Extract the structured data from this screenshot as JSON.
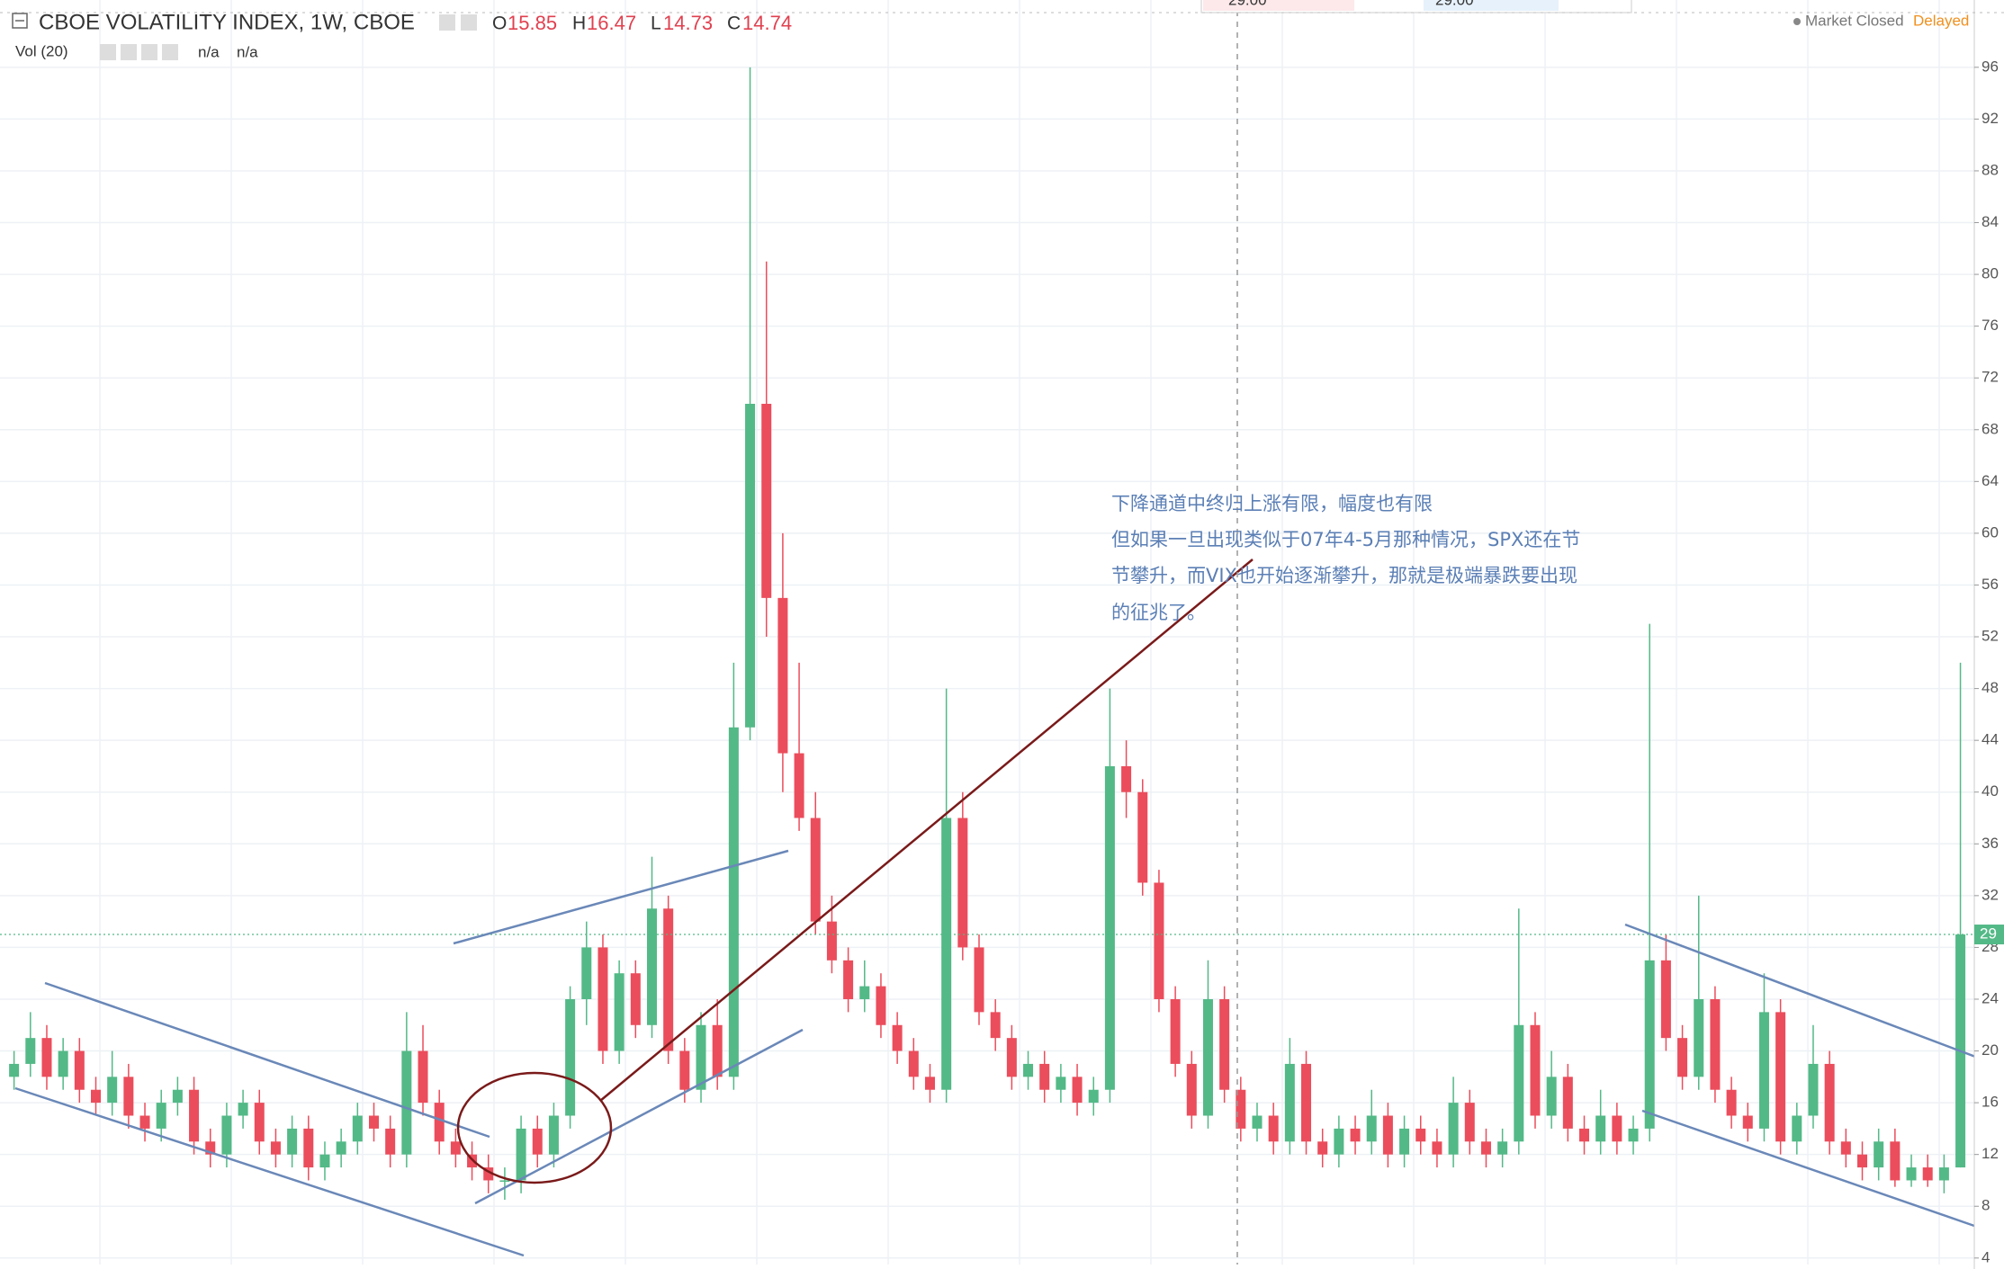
{
  "chart_data": {
    "type": "candlestick",
    "title": "CBOE VOLATILITY INDEX, 1W, CBOE",
    "legend_ohlc": {
      "o_label": "O",
      "o": 15.85,
      "h_label": "H",
      "h": 16.47,
      "l_label": "L",
      "l": 14.73,
      "c_label": "C",
      "c": 14.74
    },
    "volume_label": "Vol (20)",
    "volume_values": [
      "n/a",
      "n/a"
    ],
    "status": "Market Closed",
    "delay": "Delayed",
    "popup_values": [
      "29.00",
      "29.00"
    ],
    "last_price_label": "29",
    "annotation": [
      "下降通道中终归上涨有限，幅度也有限",
      "但如果一旦出现类似于07年4-5月那种情况，SPX还在节",
      "节攀升，而VIX也开始逐渐攀升，那就是极端暴跌要出现",
      "的征兆了。"
    ],
    "up_color": "#53b987",
    "down_color": "#eb4d5c",
    "grid": true,
    "ylim": [
      3.5,
      101.2
    ],
    "yticks": [
      4,
      8,
      12,
      16,
      20,
      24,
      28,
      32,
      36,
      40,
      44,
      48,
      52,
      56,
      60,
      64,
      68,
      72,
      76,
      80,
      84,
      88,
      92,
      96
    ],
    "ohlc": [
      [
        18,
        20,
        17,
        19
      ],
      [
        19,
        23,
        18,
        21
      ],
      [
        21,
        22,
        17,
        18
      ],
      [
        18,
        21,
        17,
        20
      ],
      [
        20,
        21,
        16,
        17
      ],
      [
        17,
        18,
        15,
        16
      ],
      [
        16,
        20,
        15,
        18
      ],
      [
        18,
        19,
        14,
        15
      ],
      [
        15,
        16,
        13,
        14
      ],
      [
        14,
        17,
        13,
        16
      ],
      [
        16,
        18,
        15,
        17
      ],
      [
        17,
        18,
        12,
        13
      ],
      [
        13,
        14,
        11,
        12
      ],
      [
        12,
        16,
        11,
        15
      ],
      [
        15,
        17,
        14,
        16
      ],
      [
        16,
        17,
        12,
        13
      ],
      [
        13,
        14,
        11,
        12
      ],
      [
        12,
        15,
        11,
        14
      ],
      [
        14,
        15,
        10,
        11
      ],
      [
        11,
        13,
        10,
        12
      ],
      [
        12,
        14,
        11,
        13
      ],
      [
        13,
        16,
        12,
        15
      ],
      [
        15,
        16,
        13,
        14
      ],
      [
        14,
        15,
        11,
        12
      ],
      [
        12,
        23,
        11,
        20
      ],
      [
        20,
        22,
        15,
        16
      ],
      [
        16,
        17,
        12,
        13
      ],
      [
        13,
        14,
        11,
        12
      ],
      [
        12,
        13,
        10,
        11
      ],
      [
        11,
        12,
        9,
        10
      ],
      [
        10,
        11,
        8.5,
        10
      ],
      [
        10,
        15,
        9,
        14
      ],
      [
        14,
        15,
        11,
        12
      ],
      [
        12,
        16,
        11,
        15
      ],
      [
        15,
        25,
        14,
        24
      ],
      [
        24,
        30,
        22,
        28
      ],
      [
        28,
        29,
        19,
        20
      ],
      [
        20,
        27,
        19,
        26
      ],
      [
        26,
        27,
        21,
        22
      ],
      [
        22,
        35,
        21,
        31
      ],
      [
        31,
        32,
        19,
        20
      ],
      [
        20,
        21,
        16,
        17
      ],
      [
        17,
        23,
        16,
        22
      ],
      [
        22,
        24,
        17,
        18
      ],
      [
        18,
        50,
        17,
        45
      ],
      [
        45,
        96,
        44,
        70
      ],
      [
        70,
        81,
        52,
        55
      ],
      [
        55,
        60,
        40,
        43
      ],
      [
        43,
        50,
        37,
        38
      ],
      [
        38,
        40,
        29,
        30
      ],
      [
        30,
        32,
        26,
        27
      ],
      [
        27,
        28,
        23,
        24
      ],
      [
        24,
        27,
        23,
        25
      ],
      [
        25,
        26,
        21,
        22
      ],
      [
        22,
        23,
        19,
        20
      ],
      [
        20,
        21,
        17,
        18
      ],
      [
        18,
        19,
        16,
        17
      ],
      [
        17,
        48,
        16,
        38
      ],
      [
        38,
        40,
        27,
        28
      ],
      [
        28,
        29,
        22,
        23
      ],
      [
        23,
        24,
        20,
        21
      ],
      [
        21,
        22,
        17,
        18
      ],
      [
        18,
        20,
        17,
        19
      ],
      [
        19,
        20,
        16,
        17
      ],
      [
        17,
        19,
        16,
        18
      ],
      [
        18,
        19,
        15,
        16
      ],
      [
        16,
        18,
        15,
        17
      ],
      [
        17,
        48,
        16,
        42
      ],
      [
        42,
        44,
        38,
        40
      ],
      [
        40,
        41,
        32,
        33
      ],
      [
        33,
        34,
        23,
        24
      ],
      [
        24,
        25,
        18,
        19
      ],
      [
        19,
        20,
        14,
        15
      ],
      [
        15,
        27,
        14,
        24
      ],
      [
        24,
        25,
        16,
        17
      ],
      [
        17,
        18,
        13,
        14
      ],
      [
        14,
        16,
        13,
        15
      ],
      [
        15,
        16,
        12,
        13
      ],
      [
        13,
        21,
        12,
        19
      ],
      [
        19,
        20,
        12,
        13
      ],
      [
        13,
        14,
        11,
        12
      ],
      [
        12,
        15,
        11,
        14
      ],
      [
        14,
        15,
        12,
        13
      ],
      [
        13,
        17,
        12,
        15
      ],
      [
        15,
        16,
        11,
        12
      ],
      [
        12,
        15,
        11,
        14
      ],
      [
        14,
        15,
        12,
        13
      ],
      [
        13,
        14,
        11,
        12
      ],
      [
        12,
        18,
        11,
        16
      ],
      [
        16,
        17,
        12,
        13
      ],
      [
        13,
        14,
        11,
        12
      ],
      [
        12,
        14,
        11,
        13
      ],
      [
        13,
        31,
        12,
        22
      ],
      [
        22,
        23,
        14,
        15
      ],
      [
        15,
        20,
        14,
        18
      ],
      [
        18,
        19,
        13,
        14
      ],
      [
        14,
        15,
        12,
        13
      ],
      [
        13,
        17,
        12,
        15
      ],
      [
        15,
        16,
        12,
        13
      ],
      [
        13,
        15,
        12,
        14
      ],
      [
        14,
        53,
        13,
        27
      ],
      [
        27,
        29,
        20,
        21
      ],
      [
        21,
        22,
        17,
        18
      ],
      [
        18,
        32,
        17,
        24
      ],
      [
        24,
        25,
        16,
        17
      ],
      [
        17,
        18,
        14,
        15
      ],
      [
        15,
        16,
        13,
        14
      ],
      [
        14,
        26,
        13,
        23
      ],
      [
        23,
        24,
        12,
        13
      ],
      [
        13,
        16,
        12,
        15
      ],
      [
        15,
        22,
        14,
        19
      ],
      [
        19,
        20,
        12,
        13
      ],
      [
        13,
        14,
        11,
        12
      ],
      [
        12,
        13,
        10,
        11
      ],
      [
        11,
        14,
        10,
        13
      ],
      [
        13,
        14,
        9.5,
        10
      ],
      [
        10,
        12,
        9.5,
        11
      ],
      [
        11,
        12,
        9.5,
        10
      ],
      [
        10,
        12,
        9,
        11
      ],
      [
        11,
        50,
        11,
        29
      ]
    ]
  }
}
